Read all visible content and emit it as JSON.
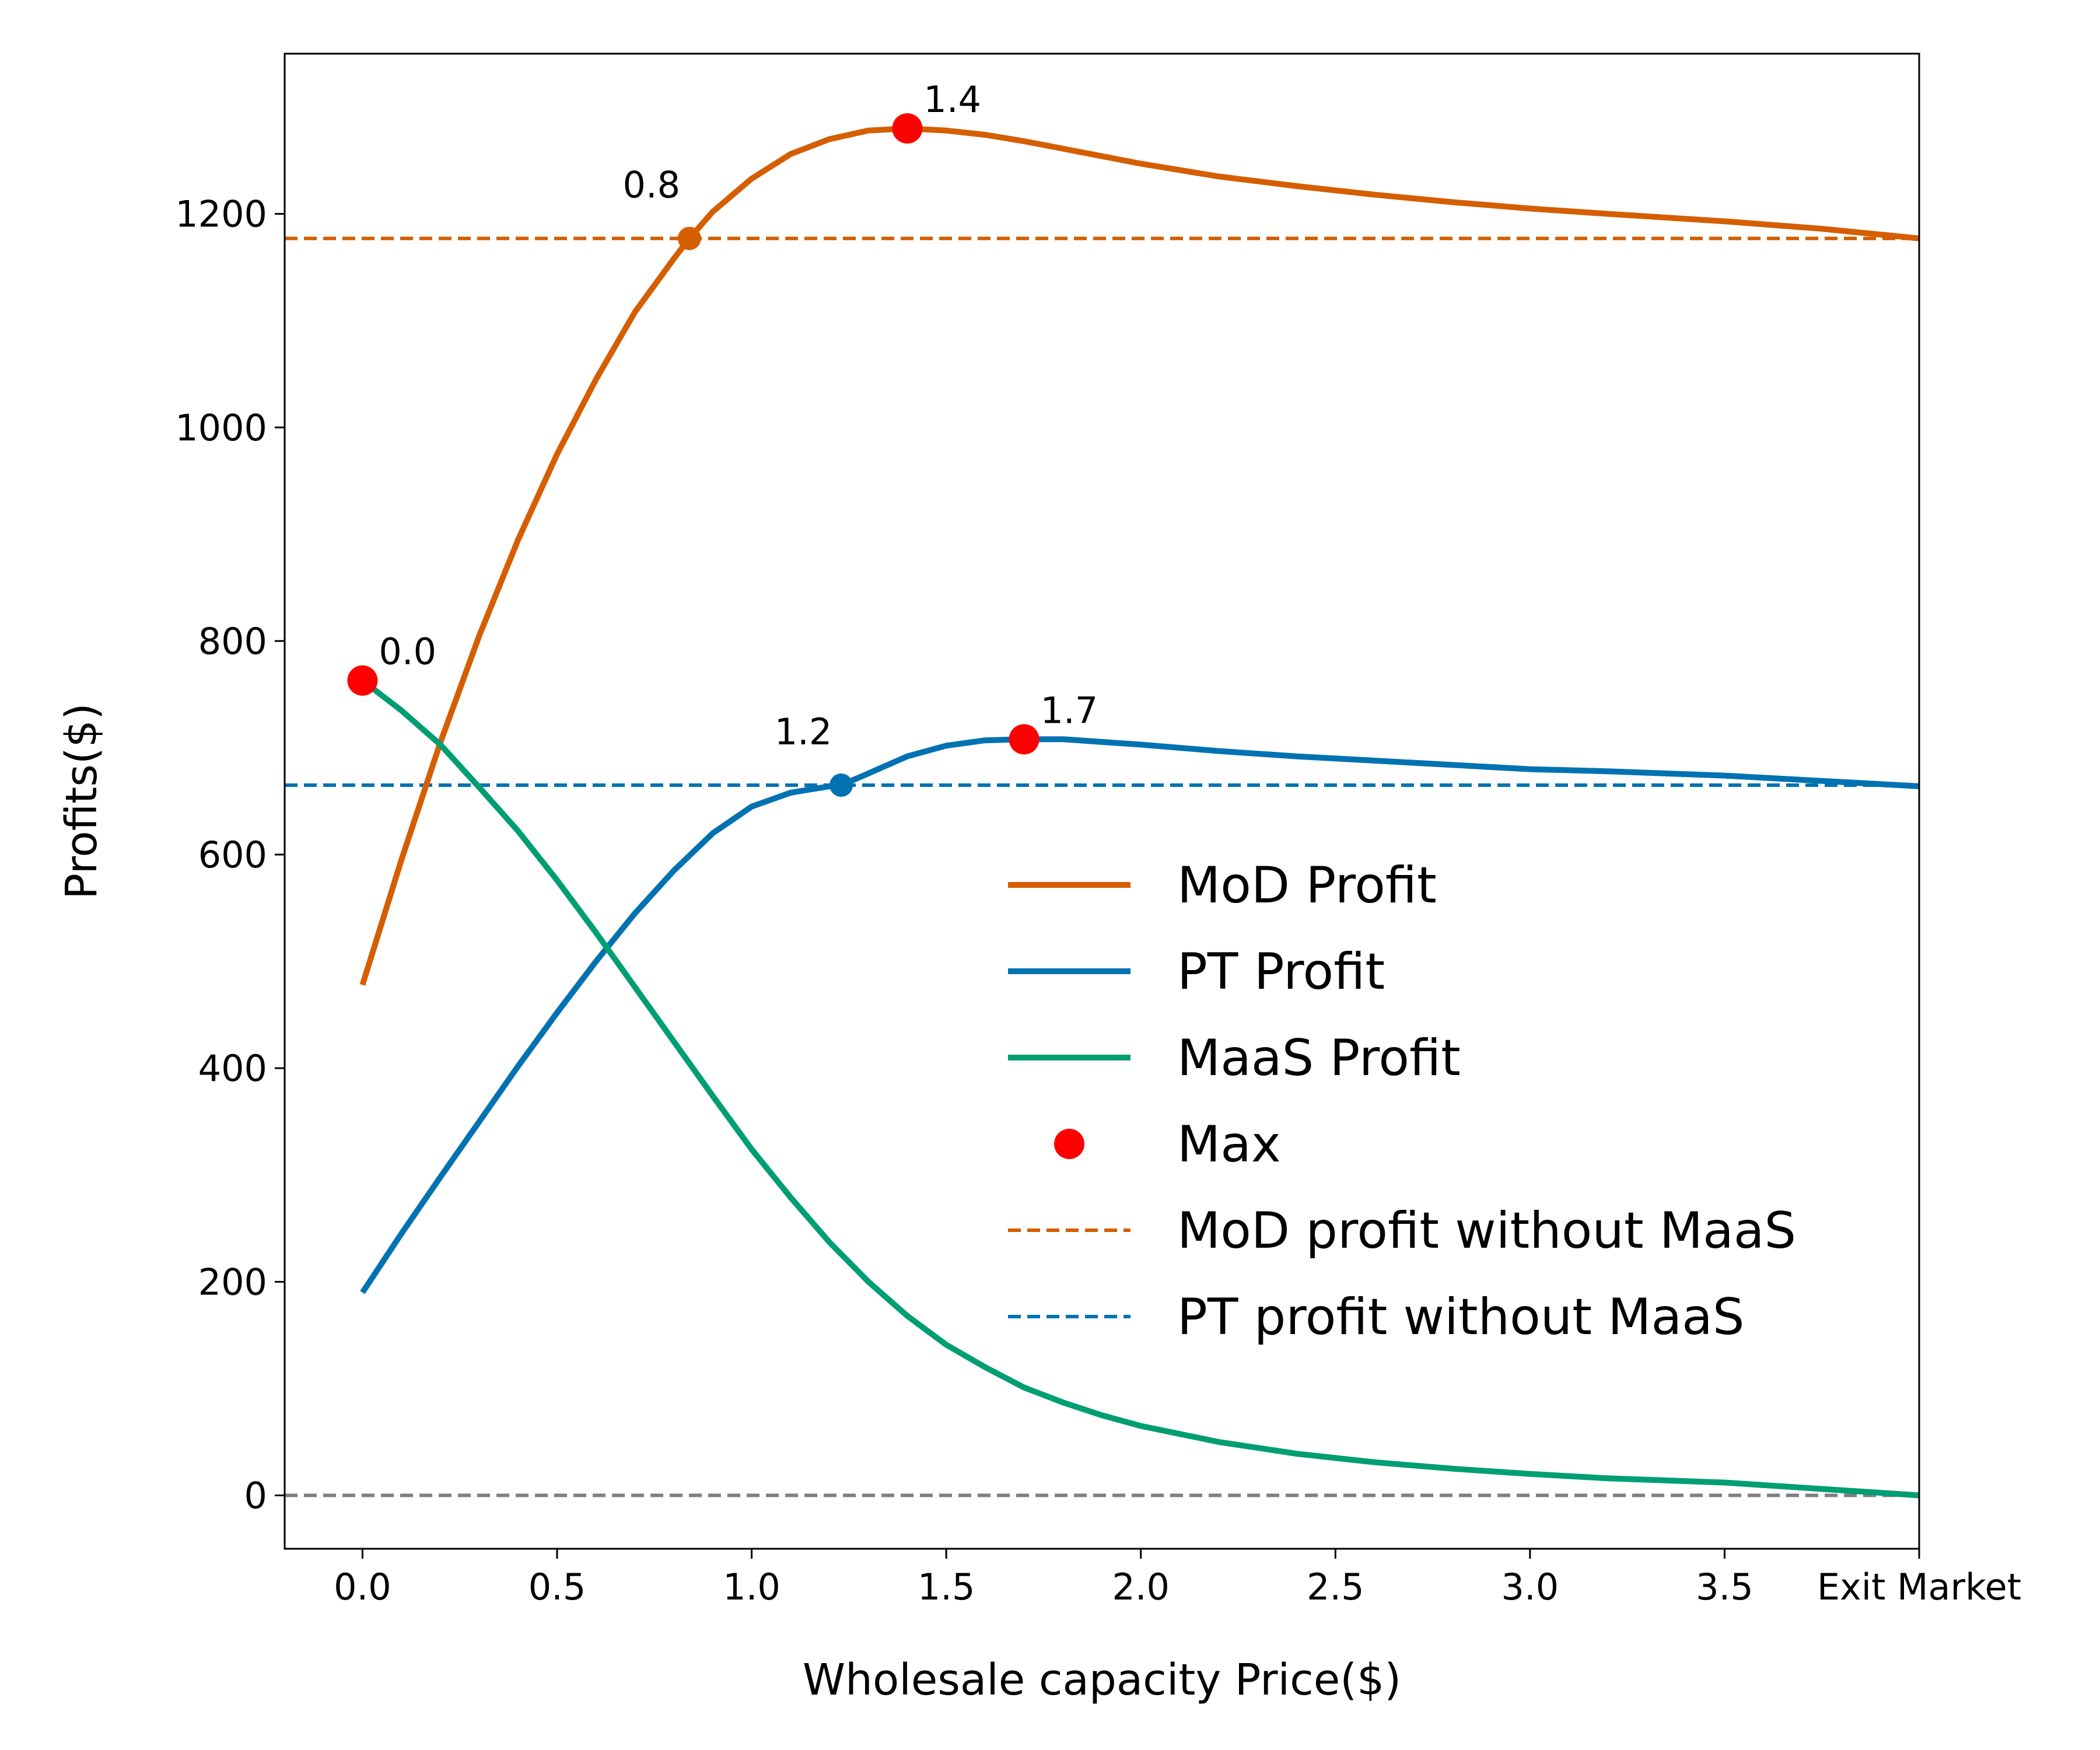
{
  "chart_data": {
    "type": "line",
    "xlabel": "Wholesale capacity Price($)",
    "ylabel": "Profits($)",
    "xlim": [
      -0.2,
      4.0
    ],
    "ylim": [
      -50,
      1350
    ],
    "x_ticks": [
      0.0,
      0.5,
      1.0,
      1.5,
      2.0,
      2.5,
      3.0,
      3.5,
      4.0
    ],
    "x_tick_labels": [
      "0.0",
      "0.5",
      "1.0",
      "1.5",
      "2.0",
      "2.5",
      "3.0",
      "3.5",
      "Exit Market"
    ],
    "y_ticks": [
      0,
      200,
      400,
      600,
      800,
      1000,
      1200
    ],
    "y_tick_labels": [
      "0",
      "200",
      "400",
      "600",
      "800",
      "1000",
      "1200"
    ],
    "series": [
      {
        "name": "MoD Profit",
        "color": "#d55e00",
        "x": [
          0.0,
          0.1,
          0.2,
          0.3,
          0.4,
          0.5,
          0.6,
          0.7,
          0.8,
          0.84,
          0.9,
          1.0,
          1.1,
          1.2,
          1.3,
          1.4,
          1.5,
          1.6,
          1.7,
          1.8,
          2.0,
          2.2,
          2.4,
          2.6,
          2.8,
          3.0,
          3.2,
          3.5,
          3.75,
          4.0
        ],
        "values": [
          478,
          595,
          705,
          805,
          895,
          975,
          1045,
          1108,
          1158,
          1177,
          1202,
          1233,
          1256,
          1270,
          1278,
          1280,
          1278,
          1274,
          1268,
          1261,
          1247,
          1235,
          1226,
          1218,
          1211,
          1205,
          1200,
          1193,
          1186,
          1177
        ]
      },
      {
        "name": "PT Profit",
        "color": "#0072b2",
        "x": [
          0.0,
          0.1,
          0.2,
          0.3,
          0.4,
          0.5,
          0.6,
          0.7,
          0.8,
          0.9,
          1.0,
          1.1,
          1.2,
          1.23,
          1.3,
          1.4,
          1.5,
          1.6,
          1.7,
          1.8,
          2.0,
          2.2,
          2.4,
          2.6,
          2.8,
          3.0,
          3.2,
          3.5,
          3.75,
          4.0
        ],
        "values": [
          190,
          245,
          298,
          350,
          402,
          452,
          500,
          545,
          585,
          620,
          645,
          658,
          664,
          665,
          676,
          692,
          702,
          707,
          708,
          708,
          703,
          697,
          692,
          688,
          684,
          680,
          678,
          674,
          669,
          664
        ]
      },
      {
        "name": "MaaS Profit",
        "color": "#009e73",
        "x": [
          0.0,
          0.1,
          0.2,
          0.3,
          0.4,
          0.5,
          0.6,
          0.7,
          0.8,
          0.9,
          1.0,
          1.1,
          1.2,
          1.3,
          1.4,
          1.5,
          1.6,
          1.7,
          1.8,
          1.9,
          2.0,
          2.2,
          2.4,
          2.6,
          2.8,
          3.0,
          3.2,
          3.5,
          3.75,
          4.0
        ],
        "values": [
          763,
          735,
          703,
          663,
          622,
          576,
          527,
          476,
          425,
          374,
          324,
          279,
          237,
          200,
          168,
          141,
          120,
          101,
          87,
          75,
          65,
          50,
          39,
          31,
          25,
          20,
          16,
          12,
          6,
          0
        ]
      }
    ],
    "reference_lines": [
      {
        "name": "MoD profit without MaaS",
        "value": 1177,
        "color": "#d55e00"
      },
      {
        "name": "PT profit without MaaS",
        "value": 665,
        "color": "#0072b2"
      },
      {
        "name": "zero",
        "value": 0,
        "color": "#808080"
      }
    ],
    "max_points": [
      {
        "x": 1.4,
        "y": 1280,
        "label": "1.4"
      },
      {
        "x": 1.7,
        "y": 708,
        "label": "1.7"
      },
      {
        "x": 0.0,
        "y": 763,
        "label": "0.0"
      }
    ],
    "break_even_points": [
      {
        "x": 0.84,
        "y": 1177,
        "label": "0.8",
        "color": "#d55e00"
      },
      {
        "x": 1.23,
        "y": 665,
        "label": "1.2",
        "color": "#0072b2"
      }
    ],
    "legend": {
      "position": "center-right",
      "entries": [
        "MoD Profit",
        "PT Profit",
        "MaaS Profit",
        "Max",
        "MoD profit without MaaS",
        "PT profit without MaaS"
      ]
    }
  }
}
